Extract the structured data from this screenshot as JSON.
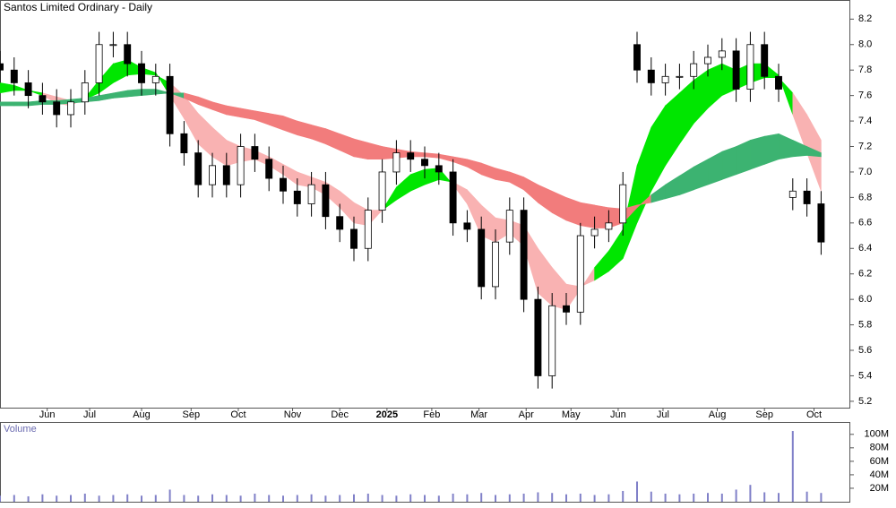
{
  "chart_data": {
    "type": "candlestick",
    "title": "Santos Limited Ordinary - Daily",
    "x": [
      0,
      6,
      12,
      18,
      24,
      30,
      36,
      42,
      48,
      54,
      60,
      66,
      72,
      78,
      84,
      90,
      96,
      102,
      108,
      114,
      120,
      126,
      132,
      138,
      144,
      150,
      156,
      162,
      168,
      174,
      180,
      186,
      192,
      198,
      204,
      210,
      216,
      222,
      228,
      234,
      240,
      246,
      252,
      258,
      264,
      270,
      276,
      282,
      288,
      294,
      300,
      306,
      312,
      318,
      324,
      330,
      336,
      342,
      348
    ],
    "open": [
      7.85,
      7.8,
      7.7,
      7.6,
      7.55,
      7.45,
      7.55,
      7.7,
      8,
      8,
      7.85,
      7.7,
      7.75,
      7.3,
      7.15,
      6.9,
      7.05,
      6.9,
      7.2,
      7.1,
      6.95,
      6.85,
      6.75,
      6.9,
      6.65,
      6.55,
      6.4,
      6.7,
      7,
      7.15,
      7.1,
      7.05,
      7,
      6.6,
      6.55,
      6.1,
      6.45,
      6.7,
      6,
      5.4,
      5.95,
      5.9,
      6.5,
      6.55,
      6.6,
      8,
      7.8,
      7.7,
      7.75,
      7.75,
      7.85,
      7.9,
      7.95,
      7.65,
      8,
      7.75,
      6.8,
      6.85,
      6.75
    ],
    "high": [
      7.95,
      7.9,
      7.8,
      7.7,
      7.65,
      7.65,
      7.8,
      8.1,
      8.1,
      8.1,
      7.95,
      7.85,
      7.85,
      7.4,
      7.25,
      7.15,
      7.15,
      7.3,
      7.3,
      7.2,
      7.05,
      6.95,
      7,
      7,
      6.75,
      6.65,
      6.8,
      7.1,
      7.25,
      7.25,
      7.2,
      7.15,
      7.1,
      6.7,
      6.65,
      6.55,
      6.8,
      6.8,
      6.1,
      6.05,
      6.05,
      6.6,
      6.65,
      6.7,
      7,
      8.1,
      7.9,
      7.85,
      7.85,
      7.95,
      8,
      8.05,
      8.05,
      8.1,
      8.1,
      7.85,
      6.95,
      6.95,
      6.85
    ],
    "low": [
      7.7,
      7.6,
      7.5,
      7.45,
      7.35,
      7.35,
      7.45,
      7.6,
      7.9,
      7.75,
      7.6,
      7.6,
      7.2,
      7.05,
      6.8,
      6.8,
      6.8,
      6.8,
      7,
      6.85,
      6.75,
      6.65,
      6.65,
      6.55,
      6.45,
      6.3,
      6.3,
      6.6,
      6.9,
      7,
      6.95,
      6.9,
      6.5,
      6.45,
      6,
      6,
      6.35,
      5.9,
      5.3,
      5.3,
      5.8,
      5.8,
      6.4,
      6.45,
      6.5,
      7.7,
      7.6,
      7.6,
      7.65,
      7.65,
      7.75,
      7.8,
      7.55,
      7.55,
      7.65,
      7.55,
      6.7,
      6.65,
      6.35
    ],
    "close": [
      7.8,
      7.7,
      7.6,
      7.55,
      7.45,
      7.55,
      7.7,
      8,
      8,
      7.85,
      7.7,
      7.75,
      7.3,
      7.15,
      6.9,
      7.05,
      6.9,
      7.2,
      7.1,
      6.95,
      6.85,
      6.75,
      6.9,
      6.65,
      6.55,
      6.4,
      6.7,
      7,
      7.15,
      7.1,
      7.05,
      7,
      6.6,
      6.55,
      6.1,
      6.45,
      6.7,
      6,
      5.4,
      5.95,
      5.9,
      6.5,
      6.55,
      6.6,
      6.9,
      7.8,
      7.7,
      7.75,
      7.75,
      7.85,
      7.9,
      7.95,
      7.65,
      8,
      7.75,
      7.65,
      6.85,
      6.75,
      6.45
    ],
    "up_color": "#ffffff",
    "down_color": "#000000",
    "xlim": [
      0,
      360
    ],
    "xticks": [
      {
        "value": 20,
        "label": "Jun"
      },
      {
        "value": 38,
        "label": "Jul"
      },
      {
        "value": 60,
        "label": "Aug"
      },
      {
        "value": 81,
        "label": "Sep"
      },
      {
        "value": 101,
        "label": "Oct"
      },
      {
        "value": 124,
        "label": "Nov"
      },
      {
        "value": 144,
        "label": "Dec"
      },
      {
        "value": 164,
        "label": "2025"
      },
      {
        "value": 183,
        "label": "Feb"
      },
      {
        "value": 203,
        "label": "Mar"
      },
      {
        "value": 223,
        "label": "Apr"
      },
      {
        "value": 242,
        "label": "May"
      },
      {
        "value": 262,
        "label": "Jun"
      },
      {
        "value": 281,
        "label": "Jul"
      },
      {
        "value": 304,
        "label": "Aug"
      },
      {
        "value": 324,
        "label": "Sep"
      },
      {
        "value": 345,
        "label": "Oct"
      }
    ],
    "ylim": [
      5.15,
      8.35
    ],
    "yticks": [
      5.2,
      5.4,
      5.6,
      5.8,
      {
        "value": 6,
        "label": "6.0"
      },
      6.2,
      6.4,
      6.6,
      6.8,
      {
        "value": 7,
        "label": "7.0"
      },
      7.2,
      7.4,
      7.6,
      7.8,
      {
        "value": 8,
        "label": "8.0"
      },
      8.2
    ],
    "ribbons": [
      {
        "up_color": "#00e600",
        "down_color": "#f9b2b2",
        "fast": [
          7.7,
          7.68,
          7.64,
          7.6,
          7.54,
          7.52,
          7.58,
          7.72,
          7.85,
          7.88,
          7.82,
          7.78,
          7.6,
          7.42,
          7.22,
          7.12,
          7.05,
          7.08,
          7.1,
          7.05,
          6.98,
          6.9,
          6.88,
          6.82,
          6.72,
          6.6,
          6.58,
          6.7,
          6.88,
          6.98,
          7.02,
          7.03,
          6.9,
          6.75,
          6.5,
          6.45,
          6.52,
          6.42,
          6.05,
          5.95,
          5.92,
          6.08,
          6.25,
          6.38,
          6.55,
          7.05,
          7.35,
          7.52,
          7.62,
          7.72,
          7.8,
          7.85,
          7.8,
          7.85,
          7.85,
          7.76,
          7.45,
          7.15,
          6.85
        ],
        "slow": [
          7.62,
          7.64,
          7.64,
          7.62,
          7.59,
          7.56,
          7.57,
          7.62,
          7.7,
          7.76,
          7.77,
          7.76,
          7.7,
          7.6,
          7.46,
          7.35,
          7.25,
          7.2,
          7.17,
          7.12,
          7.06,
          7,
          6.96,
          6.92,
          6.85,
          6.76,
          6.7,
          6.7,
          6.78,
          6.85,
          6.9,
          6.94,
          6.92,
          6.86,
          6.74,
          6.64,
          6.62,
          6.58,
          6.4,
          6.25,
          6.12,
          6.1,
          6.15,
          6.22,
          6.32,
          6.6,
          6.85,
          7.05,
          7.22,
          7.38,
          7.5,
          7.6,
          7.65,
          7.7,
          7.74,
          7.74,
          7.62,
          7.45,
          7.25
        ]
      },
      {
        "up_color": "#3cb371",
        "down_color": "#f27c7c",
        "fast": [
          7.55,
          7.55,
          7.55,
          7.56,
          7.56,
          7.57,
          7.58,
          7.6,
          7.62,
          7.64,
          7.65,
          7.65,
          7.62,
          7.58,
          7.53,
          7.49,
          7.45,
          7.43,
          7.41,
          7.37,
          7.33,
          7.29,
          7.26,
          7.22,
          7.17,
          7.12,
          7.1,
          7.1,
          7.11,
          7.12,
          7.12,
          7.11,
          7.08,
          7.04,
          6.98,
          6.94,
          6.92,
          6.86,
          6.76,
          6.68,
          6.62,
          6.58,
          6.56,
          6.56,
          6.6,
          6.72,
          6.82,
          6.9,
          6.97,
          7.04,
          7.1,
          7.16,
          7.2,
          7.25,
          7.28,
          7.3,
          7.25,
          7.2,
          7.15
        ],
        "slow": [
          7.52,
          7.52,
          7.52,
          7.53,
          7.53,
          7.54,
          7.55,
          7.56,
          7.58,
          7.59,
          7.6,
          7.61,
          7.62,
          7.62,
          7.59,
          7.55,
          7.52,
          7.5,
          7.48,
          7.46,
          7.44,
          7.4,
          7.37,
          7.34,
          7.3,
          7.26,
          7.23,
          7.2,
          7.18,
          7.16,
          7.15,
          7.14,
          7.12,
          7.1,
          7.07,
          7.03,
          7,
          6.96,
          6.9,
          6.85,
          6.8,
          6.76,
          6.74,
          6.72,
          6.71,
          6.74,
          6.76,
          6.79,
          6.82,
          6.86,
          6.9,
          6.94,
          6.98,
          7.02,
          7.06,
          7.1,
          7.12,
          7.13,
          7.12
        ]
      }
    ],
    "volume": {
      "label": "Volume",
      "color": "#8080c8",
      "values": [
        9,
        10,
        8,
        11,
        9,
        10,
        12,
        9,
        10,
        11,
        9,
        10,
        18,
        10,
        9,
        11,
        10,
        9,
        12,
        10,
        9,
        10,
        11,
        9,
        10,
        11,
        12,
        10,
        9,
        11,
        10,
        9,
        12,
        11,
        13,
        10,
        11,
        12,
        14,
        13,
        11,
        12,
        10,
        11,
        16,
        30,
        15,
        12,
        11,
        12,
        13,
        12,
        18,
        25,
        14,
        13,
        105,
        15,
        13
      ],
      "ylim": [
        0,
        117
      ],
      "yticks": [
        {
          "value": 20,
          "label": "20M"
        },
        {
          "value": 40,
          "label": "40M"
        },
        {
          "value": 60,
          "label": "60M"
        },
        {
          "value": 80,
          "label": "80M"
        },
        {
          "value": 100,
          "label": "100M"
        }
      ]
    }
  }
}
